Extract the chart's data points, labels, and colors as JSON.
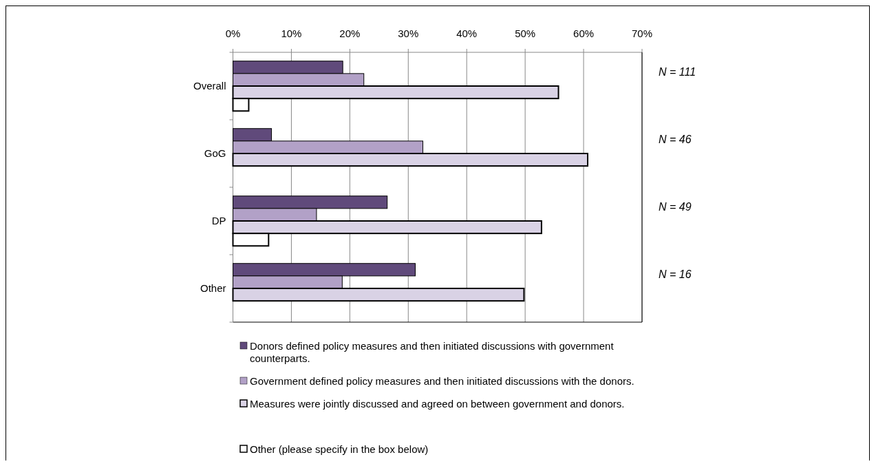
{
  "chart_data": {
    "type": "bar",
    "orientation": "horizontal",
    "categories": [
      "Overall",
      "GoG",
      "DP",
      "Other"
    ],
    "series": [
      {
        "name": "Donors defined policy measures and then initiated discussions with government counterparts.",
        "color": "#604a7b",
        "values": [
          18.8,
          6.6,
          26.4,
          31.2
        ]
      },
      {
        "name": "Government defined policy measures and then initiated discussions with the donors.",
        "color": "#b2a1c7",
        "values": [
          22.4,
          32.5,
          14.3,
          18.7
        ]
      },
      {
        "name": "Measures were jointly discussed and agreed on between government and donors.",
        "color": "#d9d2e5",
        "values": [
          55.7,
          60.7,
          52.8,
          49.8
        ]
      },
      {
        "name": "Other (please specify in the box below)",
        "color": "#ffffff",
        "values": [
          2.7,
          0,
          6.1,
          0
        ]
      }
    ],
    "xlim": [
      0,
      70
    ],
    "xticks": [
      {
        "value": 0,
        "label": "0%"
      },
      {
        "value": 10,
        "label": "10%"
      },
      {
        "value": 20,
        "label": "20%"
      },
      {
        "value": 30,
        "label": "30%"
      },
      {
        "value": 40,
        "label": "40%"
      },
      {
        "value": 50,
        "label": "50%"
      },
      {
        "value": 60,
        "label": "60%"
      },
      {
        "value": 70,
        "label": "70%"
      }
    ],
    "grid": "x",
    "legend": "bottom",
    "annotations": [
      "N = 111",
      "N = 46",
      "N = 49",
      "N = 16"
    ]
  }
}
